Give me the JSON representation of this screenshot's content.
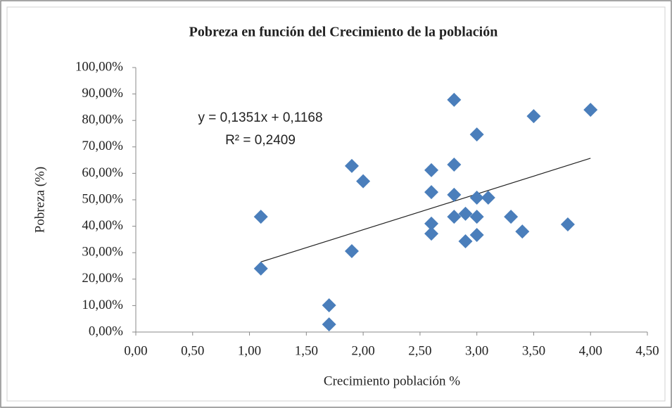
{
  "chart_data": {
    "type": "scatter",
    "title": "Pobreza en función del Crecimiento de la población",
    "x_label": "Crecimiento población  %",
    "y_label": "Pobreza (%)",
    "annotations": [
      "y = 0,1351x + 0,1168",
      "R² = 0,2409"
    ],
    "color": "#4a7ebb",
    "x": [
      1.1,
      1.1,
      1.7,
      1.7,
      1.9,
      1.9,
      2.0,
      2.6,
      2.6,
      2.6,
      2.6,
      2.8,
      2.8,
      2.8,
      2.8,
      2.9,
      2.9,
      3.0,
      3.0,
      3.0,
      3.0,
      3.1,
      3.3,
      3.4,
      3.5,
      3.8,
      4.0
    ],
    "values": [
      43.6,
      24.0,
      10.1,
      2.9,
      62.8,
      30.6,
      57.0,
      61.2,
      52.9,
      41.0,
      37.2,
      87.8,
      63.3,
      51.9,
      43.6,
      44.7,
      34.3,
      74.7,
      50.8,
      43.6,
      36.7,
      50.8,
      43.6,
      38.0,
      81.6,
      40.7,
      84.0
    ],
    "trendline": {
      "x": [
        1.1,
        4.0
      ],
      "y": [
        26.5,
        65.7
      ]
    },
    "xlim": [
      0,
      4.5
    ],
    "xticks": [
      {
        "value": 0,
        "label": "0,00"
      },
      {
        "value": 0.5,
        "label": "0,50"
      },
      {
        "value": 1,
        "label": "1,00"
      },
      {
        "value": 1.5,
        "label": "1,50"
      },
      {
        "value": 2,
        "label": "2,00"
      },
      {
        "value": 2.5,
        "label": "2,50"
      },
      {
        "value": 3,
        "label": "3,00"
      },
      {
        "value": 3.5,
        "label": "3,50"
      },
      {
        "value": 4,
        "label": "4,00"
      },
      {
        "value": 4.5,
        "label": "4,50"
      }
    ],
    "ylim": [
      0,
      100
    ],
    "yticks": [
      {
        "value": 0,
        "label": "0,00%"
      },
      {
        "value": 10,
        "label": "10,00%"
      },
      {
        "value": 20,
        "label": "20,00%"
      },
      {
        "value": 30,
        "label": "30,00%"
      },
      {
        "value": 40,
        "label": "40,00%"
      },
      {
        "value": 50,
        "label": "50,00%"
      },
      {
        "value": 60,
        "label": "60,00%"
      },
      {
        "value": 70,
        "label": "70,00%"
      },
      {
        "value": 80,
        "label": "80,00%"
      },
      {
        "value": 90,
        "label": "90,00%"
      },
      {
        "value": 100,
        "label": "100,00%"
      }
    ],
    "grid": false
  }
}
